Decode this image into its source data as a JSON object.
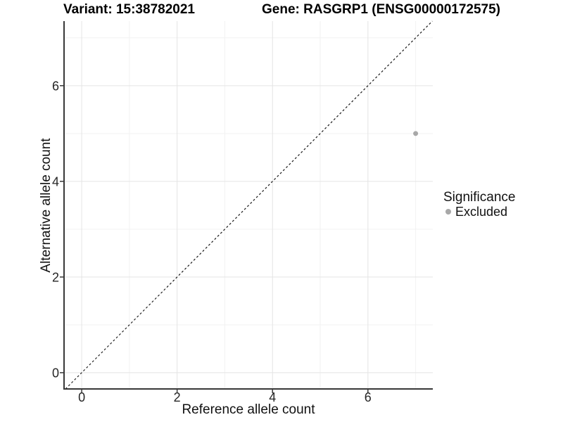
{
  "header": {
    "title_left": "Variant: 15:38782021",
    "title_right": "Gene: RASGRP1 (ENSG00000172575)"
  },
  "chart_data": {
    "type": "scatter",
    "xlabel": "Reference allele count",
    "ylabel": "Alternative allele count",
    "xlim": [
      -0.37,
      7.36
    ],
    "ylim": [
      -0.34,
      7.35
    ],
    "xticks": [
      0,
      2,
      4,
      6
    ],
    "yticks": [
      0,
      2,
      4,
      6
    ],
    "minor_xticks": [
      1,
      3,
      5,
      7
    ],
    "minor_yticks": [
      1,
      3,
      5,
      7
    ],
    "grid": true,
    "series": [
      {
        "name": "Excluded",
        "color": "#a8a8a8",
        "points": [
          {
            "x": 7,
            "y": 5
          }
        ]
      }
    ],
    "reference_line": {
      "type": "identity",
      "slope": 1,
      "intercept": 0,
      "style": "dashed",
      "color": "#1a1a1a"
    },
    "legend": {
      "title": "Significance",
      "position": "right",
      "items": [
        {
          "label": "Excluded",
          "color": "#a8a8a8"
        }
      ]
    }
  },
  "colors": {
    "background": "#ffffff",
    "grid_major": "#e4e4e4",
    "grid_minor": "#f2f2f2",
    "axis_line": "#383838",
    "tick_text": "#262626"
  }
}
